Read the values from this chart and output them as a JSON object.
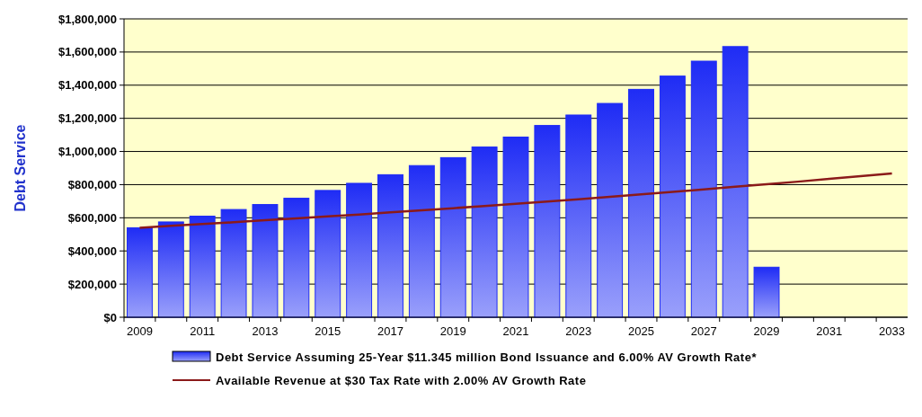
{
  "chart_data": {
    "type": "bar",
    "ylabel": "Debt Service",
    "categories": [
      "2009",
      null,
      "2011",
      null,
      "2013",
      null,
      "2015",
      null,
      "2017",
      null,
      "2019",
      null,
      "2021",
      null,
      "2023",
      null,
      "2025",
      null,
      "2027",
      null,
      "2029",
      null,
      "2031",
      null,
      "2033"
    ],
    "series": [
      {
        "name": "Debt Service Assuming 25-Year $11.345 million Bond Issuance and 6.00% AV Growth Rate*",
        "color": "#1f2cf5",
        "values": [
          540000,
          575000,
          610000,
          650000,
          680000,
          718000,
          765000,
          808000,
          860000,
          915000,
          963000,
          1027000,
          1087000,
          1157000,
          1220000,
          1290000,
          1375000,
          1455000,
          1545000,
          1633000,
          302000,
          null,
          null,
          null,
          null
        ]
      },
      {
        "name": "Available Revenue at $30 Tax Rate with 2.00% AV Growth Rate",
        "type": "line",
        "color": "#8b1a1a",
        "values": [
          540000,
          551000,
          562000,
          573000,
          585000,
          596000,
          608000,
          620000,
          633000,
          645000,
          658000,
          671000,
          685000,
          698000,
          712000,
          727000,
          741000,
          756000,
          771000,
          787000,
          802000,
          818000,
          835000,
          851000,
          868000
        ]
      }
    ],
    "ylim": [
      0,
      1800000
    ],
    "yticks": [
      {
        "value": 0,
        "label": "$0"
      },
      {
        "value": 200000,
        "label": "$200,000"
      },
      {
        "value": 400000,
        "label": "$400,000"
      },
      {
        "value": 600000,
        "label": "$600,000"
      },
      {
        "value": 800000,
        "label": "$800,000"
      },
      {
        "value": 1000000,
        "label": "$1,000,000"
      },
      {
        "value": 1200000,
        "label": "$1,200,000"
      },
      {
        "value": 1400000,
        "label": "$1,400,000"
      },
      {
        "value": 1600000,
        "label": "$1,600,000"
      },
      {
        "value": 1800000,
        "label": "$1,800,000"
      }
    ],
    "grid": "y",
    "legend": "bottom"
  }
}
